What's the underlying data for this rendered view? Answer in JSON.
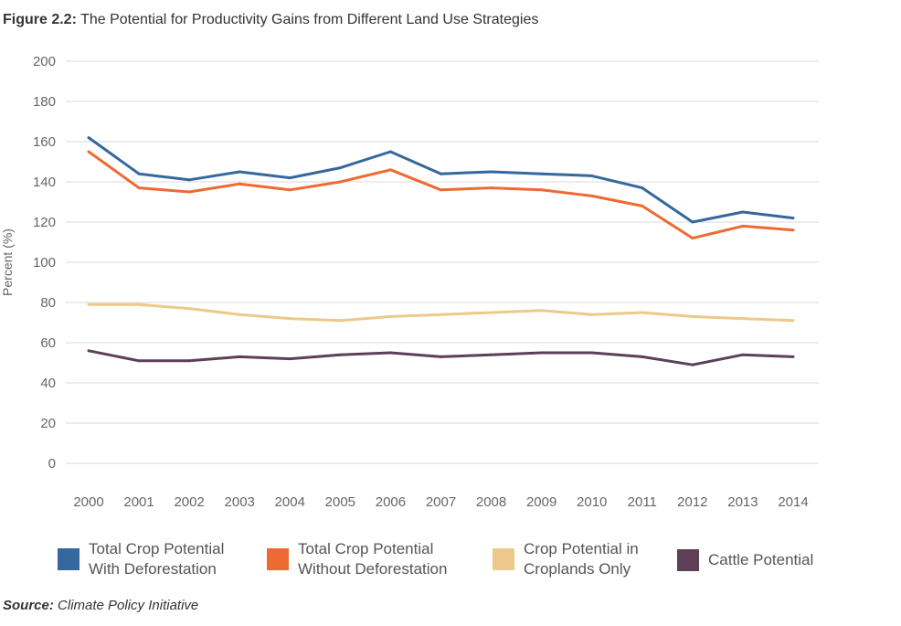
{
  "figure": {
    "title_lead": "Figure 2.2:",
    "title_rest": "The Potential for Productivity Gains from Different Land Use Strategies"
  },
  "source": {
    "lead": "Source:",
    "text": "Climate Policy Initiative"
  },
  "chart_data": {
    "type": "line",
    "title": "The Potential for Productivity Gains from Different Land Use Strategies",
    "xlabel": "",
    "ylabel": "Percent (%)",
    "ylim": [
      0,
      200
    ],
    "yticks": [
      0,
      20,
      40,
      60,
      80,
      100,
      120,
      140,
      160,
      180,
      200
    ],
    "grid": "horizontal",
    "legend_position": "bottom",
    "x": [
      "2000",
      "2001",
      "2002",
      "2003",
      "2004",
      "2005",
      "2006",
      "2007",
      "2008",
      "2009",
      "2010",
      "2011",
      "2012",
      "2013",
      "2014"
    ],
    "series": [
      {
        "name": "Total Crop Potential With Deforestation",
        "color": "#35689c",
        "values": [
          162,
          144,
          141,
          145,
          142,
          147,
          155,
          144,
          145,
          144,
          143,
          137,
          120,
          125,
          122
        ]
      },
      {
        "name": "Total Crop Potential Without Deforestation",
        "color": "#ee6a33",
        "values": [
          155,
          137,
          135,
          139,
          136,
          140,
          146,
          136,
          137,
          136,
          133,
          128,
          112,
          118,
          116
        ]
      },
      {
        "name": "Crop Potential in Croplands Only",
        "color": "#ecc98a",
        "values": [
          79,
          79,
          77,
          74,
          72,
          71,
          73,
          74,
          75,
          76,
          74,
          75,
          73,
          72,
          71
        ]
      },
      {
        "name": "Cattle Potential",
        "color": "#5d3f57",
        "values": [
          56,
          51,
          51,
          53,
          52,
          54,
          55,
          53,
          54,
          55,
          55,
          53,
          49,
          54,
          53
        ]
      }
    ]
  },
  "legend": [
    {
      "line1": "Total Crop Potential",
      "line2": "With Deforestation",
      "color": "#35689c"
    },
    {
      "line1": "Total Crop Potential",
      "line2": "Without Deforestation",
      "color": "#ee6a33"
    },
    {
      "line1": "Crop Potential in",
      "line2": "Croplands Only",
      "color": "#ecc98a"
    },
    {
      "line1": "Cattle Potential",
      "line2": "",
      "color": "#5d3f57"
    }
  ]
}
